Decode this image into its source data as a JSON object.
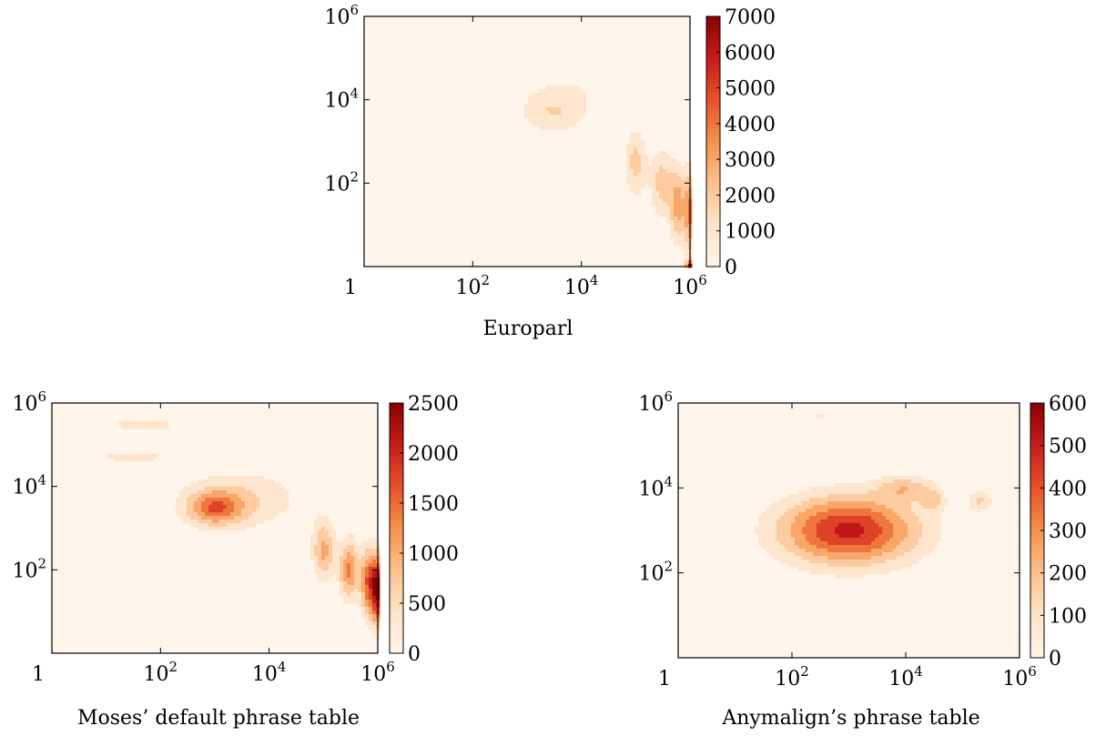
{
  "chart_data": [
    {
      "type": "heatmap",
      "subtype": "filled-contour",
      "caption": "Europarl",
      "x_scale": "log",
      "y_scale": "log",
      "xlim": [
        1,
        1000000
      ],
      "ylim": [
        1,
        1000000
      ],
      "x_ticks": [
        "1",
        "10^2",
        "10^4",
        "10^6"
      ],
      "y_ticks": [
        "10^2",
        "10^4",
        "10^6"
      ],
      "colorbar": {
        "min": 0,
        "max": 7000,
        "ticks": [
          "0",
          "1000",
          "2000",
          "3000",
          "4000",
          "5000",
          "6000",
          "7000"
        ]
      },
      "colormap": [
        "#fff5eb",
        "#fde4c8",
        "#fdc18f",
        "#f4934a",
        "#e8522b",
        "#c91c1c",
        "#8b0000"
      ],
      "blobs": [
        {
          "x": 10000,
          "y": 30000,
          "sx": 1.3,
          "sy": 0.8,
          "level": 800
        },
        {
          "x": 3000,
          "y": 5000,
          "sx": 0.6,
          "sy": 0.5,
          "level": 1800
        },
        {
          "x": 100000,
          "y": 300,
          "sx": 0.2,
          "sy": 0.8,
          "level": 2400
        },
        {
          "x": 300000,
          "y": 100,
          "sx": 0.2,
          "sy": 0.8,
          "level": 2500
        },
        {
          "x": 600000,
          "y": 30,
          "sx": 0.15,
          "sy": 0.9,
          "level": 3500
        },
        {
          "x": 1000000,
          "y": 20,
          "sx": 0.1,
          "sy": 1.0,
          "level": 4000
        },
        {
          "x": 100,
          "y": 300000,
          "sx": 0.6,
          "sy": 0.12,
          "level": 600
        },
        {
          "x": 10,
          "y": 600000,
          "sx": 0.5,
          "sy": 0.08,
          "level": 500
        },
        {
          "x": 1000000,
          "y": 1,
          "sx": 0.08,
          "sy": 0.15,
          "level": 6500
        }
      ]
    },
    {
      "type": "heatmap",
      "subtype": "filled-contour",
      "caption": "Moses’ default phrase table",
      "x_scale": "log",
      "y_scale": "log",
      "xlim": [
        1,
        1000000
      ],
      "ylim": [
        1,
        1000000
      ],
      "x_ticks": [
        "1",
        "10^2",
        "10^4",
        "10^6"
      ],
      "y_ticks": [
        "10^2",
        "10^4",
        "10^6"
      ],
      "colorbar": {
        "min": 0,
        "max": 2500,
        "ticks": [
          "0",
          "500",
          "1000",
          "1500",
          "2000",
          "2500"
        ]
      },
      "colormap": [
        "#fff5eb",
        "#fde4c8",
        "#fdc18f",
        "#f4934a",
        "#e8522b",
        "#c91c1c",
        "#8b0000"
      ],
      "blobs": [
        {
          "x": 3000,
          "y": 5000,
          "sx": 1.1,
          "sy": 0.7,
          "level": 700
        },
        {
          "x": 1000,
          "y": 3000,
          "sx": 0.5,
          "sy": 0.4,
          "level": 1400
        },
        {
          "x": 30,
          "y": 50000,
          "sx": 0.9,
          "sy": 0.12,
          "level": 500
        },
        {
          "x": 50,
          "y": 300000,
          "sx": 0.8,
          "sy": 0.1,
          "level": 600
        },
        {
          "x": 100000,
          "y": 300,
          "sx": 0.2,
          "sy": 0.7,
          "level": 1200
        },
        {
          "x": 300000,
          "y": 100,
          "sx": 0.18,
          "sy": 0.7,
          "level": 1500
        },
        {
          "x": 700000,
          "y": 50,
          "sx": 0.15,
          "sy": 0.8,
          "level": 1900
        },
        {
          "x": 1000000,
          "y": 30,
          "sx": 0.1,
          "sy": 0.8,
          "level": 2200
        }
      ]
    },
    {
      "type": "heatmap",
      "subtype": "filled-contour",
      "caption": "Anymalign’s phrase table",
      "x_scale": "log",
      "y_scale": "log",
      "xlim": [
        1,
        1000000
      ],
      "ylim": [
        1,
        1000000
      ],
      "x_ticks": [
        "1",
        "10^2",
        "10^4",
        "10^6"
      ],
      "y_ticks": [
        "10^2",
        "10^4",
        "10^6"
      ],
      "colorbar": {
        "min": 0,
        "max": 600,
        "ticks": [
          "0",
          "100",
          "200",
          "300",
          "400",
          "500",
          "600"
        ]
      },
      "colormap": [
        "#fff5eb",
        "#fde4c8",
        "#fdc18f",
        "#f4934a",
        "#e8522b",
        "#c91c1c",
        "#8b0000"
      ],
      "blobs": [
        {
          "x": 1000,
          "y": 1000,
          "sx": 1.2,
          "sy": 0.8,
          "level": 540
        },
        {
          "x": 10000,
          "y": 10000,
          "sx": 0.5,
          "sy": 0.3,
          "level": 200
        },
        {
          "x": 200000,
          "y": 5000,
          "sx": 0.2,
          "sy": 0.25,
          "level": 180
        },
        {
          "x": 30000,
          "y": 5000,
          "sx": 0.2,
          "sy": 0.25,
          "level": 160
        },
        {
          "x": 300,
          "y": 500000,
          "sx": 0.15,
          "sy": 0.06,
          "level": 100
        }
      ]
    }
  ]
}
